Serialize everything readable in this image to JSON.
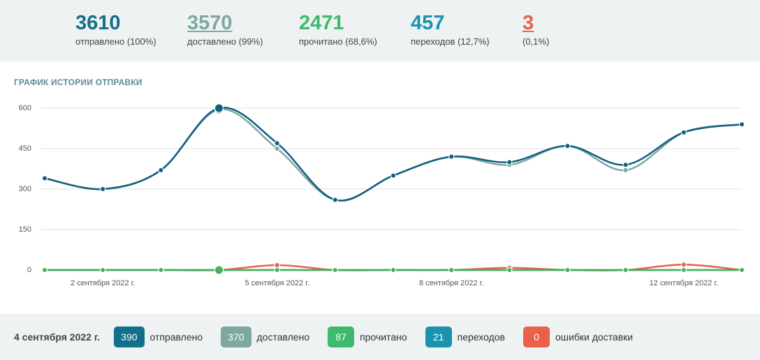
{
  "stats": [
    {
      "value": 3610,
      "label": "отправлено (100%)",
      "color": "#13708a"
    },
    {
      "value": 3570,
      "label": "доставлено (99%)",
      "color": "#7ea79f",
      "underline": true
    },
    {
      "value": 2471,
      "label": "прочитано (68,6%)",
      "color": "#3dba6d"
    },
    {
      "value": 457,
      "label": "переходов (12,7%)",
      "color": "#1a93b0"
    },
    {
      "value": 3,
      "label": "(0,1%)",
      "color": "#e9604b",
      "underline": true
    }
  ],
  "chart_data": {
    "type": "line",
    "title": "ГРАФИК ИСТОРИИ ОТПРАВКИ",
    "categories": [
      null,
      "2 сентября 2022 г.",
      null,
      null,
      "5 сентября 2022 г.",
      null,
      null,
      "8 сентября 2022 г.",
      null,
      null,
      null,
      "12 сентября 2022 г.",
      null
    ],
    "series": [
      {
        "name": "отправлено",
        "color": "#0f5f7f",
        "values": [
          340,
          300,
          370,
          600,
          470,
          260,
          350,
          420,
          400,
          460,
          390,
          510,
          540
        ]
      },
      {
        "name": "доставлено",
        "color": "#7ea79f",
        "values": [
          340,
          300,
          370,
          595,
          450,
          260,
          350,
          420,
          390,
          460,
          370,
          510,
          540
        ]
      },
      {
        "name": "прочитано",
        "color": "#44b25a",
        "values": [
          0,
          0,
          0,
          0,
          0,
          0,
          0,
          0,
          0,
          0,
          0,
          0,
          0
        ]
      },
      {
        "name": "переходов",
        "color": "#1a93b0",
        "values": [
          0,
          0,
          0,
          0,
          0,
          0,
          0,
          0,
          0,
          0,
          0,
          0,
          0
        ]
      },
      {
        "name": "ошибки доставки",
        "color": "#e9604b",
        "values": [
          0,
          0,
          0,
          0,
          18,
          0,
          0,
          0,
          8,
          0,
          0,
          20,
          0
        ]
      }
    ],
    "ylim": [
      0,
      600
    ],
    "yticks": [
      0,
      150,
      300,
      450,
      600
    ],
    "grid": true
  },
  "footer": {
    "date": "4 сентября 2022 г.",
    "items": [
      {
        "value": 390,
        "label": "отправлено",
        "color": "#13708a"
      },
      {
        "value": 370,
        "label": "доставлено",
        "color": "#7ea79f"
      },
      {
        "value": 87,
        "label": "прочитано",
        "color": "#3dba6d"
      },
      {
        "value": 21,
        "label": "переходов",
        "color": "#1a93b0"
      },
      {
        "value": 0,
        "label": "ошибки доставки",
        "color": "#e9604b"
      }
    ]
  }
}
